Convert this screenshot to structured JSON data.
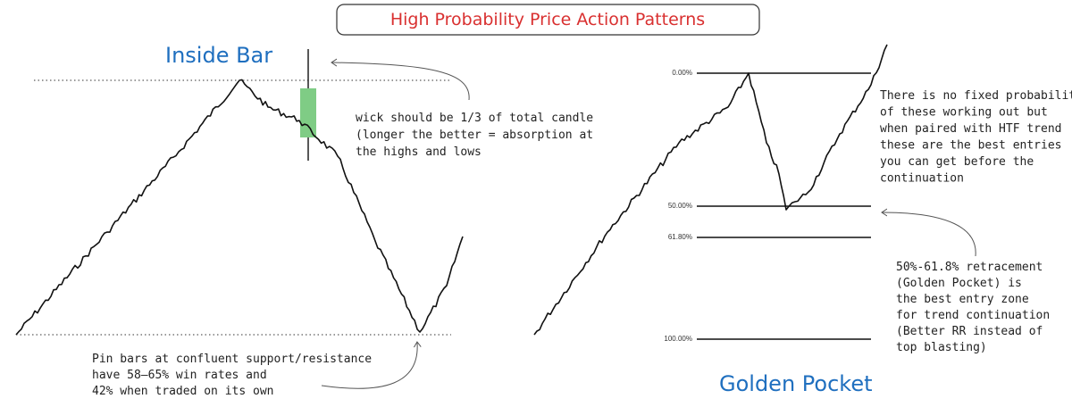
{
  "title": "High Probability Price Action Patterns",
  "inside_bar": {
    "title": "Inside Bar",
    "wick_note": [
      "wick should be 1/3 of total candle",
      "(longer the better = absorption at",
      "the highs and lows"
    ],
    "pin_note": [
      "Pin bars at confluent support/resistance",
      "have 58–65% win rates and",
      "42% when traded on its own"
    ]
  },
  "golden_pocket": {
    "title": "Golden Pocket",
    "levels": [
      "0.00%",
      "50.00%",
      "61.80%",
      "100.00%"
    ],
    "probability_note": [
      "There is no fixed probability",
      "of these working out but",
      "when paired with HTF trend",
      "these are the best entries",
      "you can get before the",
      "continuation"
    ],
    "retracement_note": [
      "50%-61.8% retracement",
      "(Golden Pocket) is",
      "the best entry zone",
      "for trend continuation",
      "(Better RR instead of",
      "top blasting)"
    ]
  }
}
